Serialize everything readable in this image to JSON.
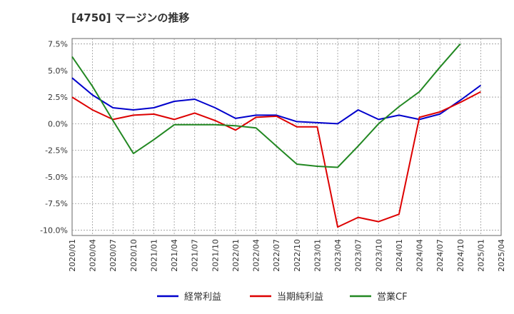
{
  "chart_data": {
    "type": "line",
    "title": "[4750]  マージンの推移",
    "x": [
      "2020/01",
      "2020/04",
      "2020/07",
      "2020/10",
      "2021/01",
      "2021/04",
      "2021/07",
      "2021/10",
      "2022/01",
      "2022/04",
      "2022/07",
      "2022/10",
      "2023/01",
      "2023/04",
      "2023/07",
      "2023/10",
      "2024/01",
      "2024/04",
      "2024/07",
      "2024/10",
      "2025/01",
      "2025/04"
    ],
    "ylim": [
      -10.5,
      8.0
    ],
    "yticks": [
      7.5,
      5.0,
      2.5,
      0.0,
      -2.5,
      -5.0,
      -7.5,
      -10.0
    ],
    "ytick_labels": [
      "7.5%",
      "5.0%",
      "2.5%",
      "0.0%",
      "-2.5%",
      "-5.0%",
      "-7.5%",
      "-10.0%"
    ],
    "grid": true,
    "legend_position": "bottom",
    "series": [
      {
        "name": "経常利益",
        "color": "#0000cc",
        "values": [
          4.3,
          2.7,
          1.5,
          1.3,
          1.5,
          2.1,
          2.3,
          1.5,
          0.5,
          0.8,
          0.8,
          0.2,
          0.1,
          0.0,
          1.3,
          0.4,
          0.8,
          0.4,
          0.9,
          2.2,
          3.6,
          null
        ]
      },
      {
        "name": "当期純利益",
        "color": "#dd0000",
        "values": [
          2.5,
          1.3,
          0.4,
          0.8,
          0.9,
          0.4,
          1.0,
          0.3,
          -0.6,
          0.6,
          0.7,
          -0.3,
          -0.3,
          -9.7,
          -8.8,
          -9.2,
          -8.5,
          0.6,
          1.1,
          2.0,
          3.0,
          null
        ]
      },
      {
        "name": "営業CF",
        "color": "#228822",
        "values": [
          6.3,
          3.5,
          0.3,
          -2.8,
          -1.5,
          -0.1,
          -0.1,
          -0.1,
          -0.2,
          -0.4,
          -2.1,
          -3.8,
          -4.0,
          -4.1,
          -2.1,
          0.0,
          1.6,
          3.0,
          5.3,
          7.5,
          null,
          null
        ]
      }
    ]
  }
}
